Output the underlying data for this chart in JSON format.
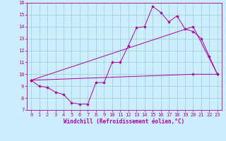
{
  "xlabel": "Windchill (Refroidissement éolien,°C)",
  "xlim": [
    -0.5,
    23.5
  ],
  "ylim": [
    7,
    16
  ],
  "xticks": [
    0,
    1,
    2,
    3,
    4,
    5,
    6,
    7,
    8,
    9,
    10,
    11,
    12,
    13,
    14,
    15,
    16,
    17,
    18,
    19,
    20,
    21,
    22,
    23
  ],
  "yticks": [
    7,
    8,
    9,
    10,
    11,
    12,
    13,
    14,
    15,
    16
  ],
  "bg_color": "#cceeff",
  "line_color": "#aa00aa",
  "grid_color": "#99cccc",
  "series1_jagged": {
    "x": [
      0,
      1,
      2,
      3,
      4,
      5,
      6,
      7,
      8,
      9,
      10,
      11,
      12,
      13,
      14,
      15,
      16,
      17,
      18,
      19,
      20,
      21,
      22,
      23
    ],
    "y": [
      9.5,
      9.0,
      8.9,
      8.5,
      8.3,
      7.6,
      7.5,
      7.5,
      9.3,
      9.3,
      11.0,
      11.0,
      12.4,
      13.9,
      14.0,
      15.7,
      15.2,
      14.4,
      14.9,
      13.8,
      13.6,
      13.0,
      11.5,
      10.0
    ]
  },
  "series2_upper": {
    "x": [
      0,
      20,
      23
    ],
    "y": [
      9.5,
      14.0,
      10.0
    ]
  },
  "series3_lower": {
    "x": [
      0,
      20,
      23
    ],
    "y": [
      9.5,
      10.0,
      10.0
    ]
  },
  "font_size_tick": 5.0,
  "font_size_xlabel": 5.5,
  "marker": "D",
  "marker_size": 1.8,
  "linewidth": 0.7
}
